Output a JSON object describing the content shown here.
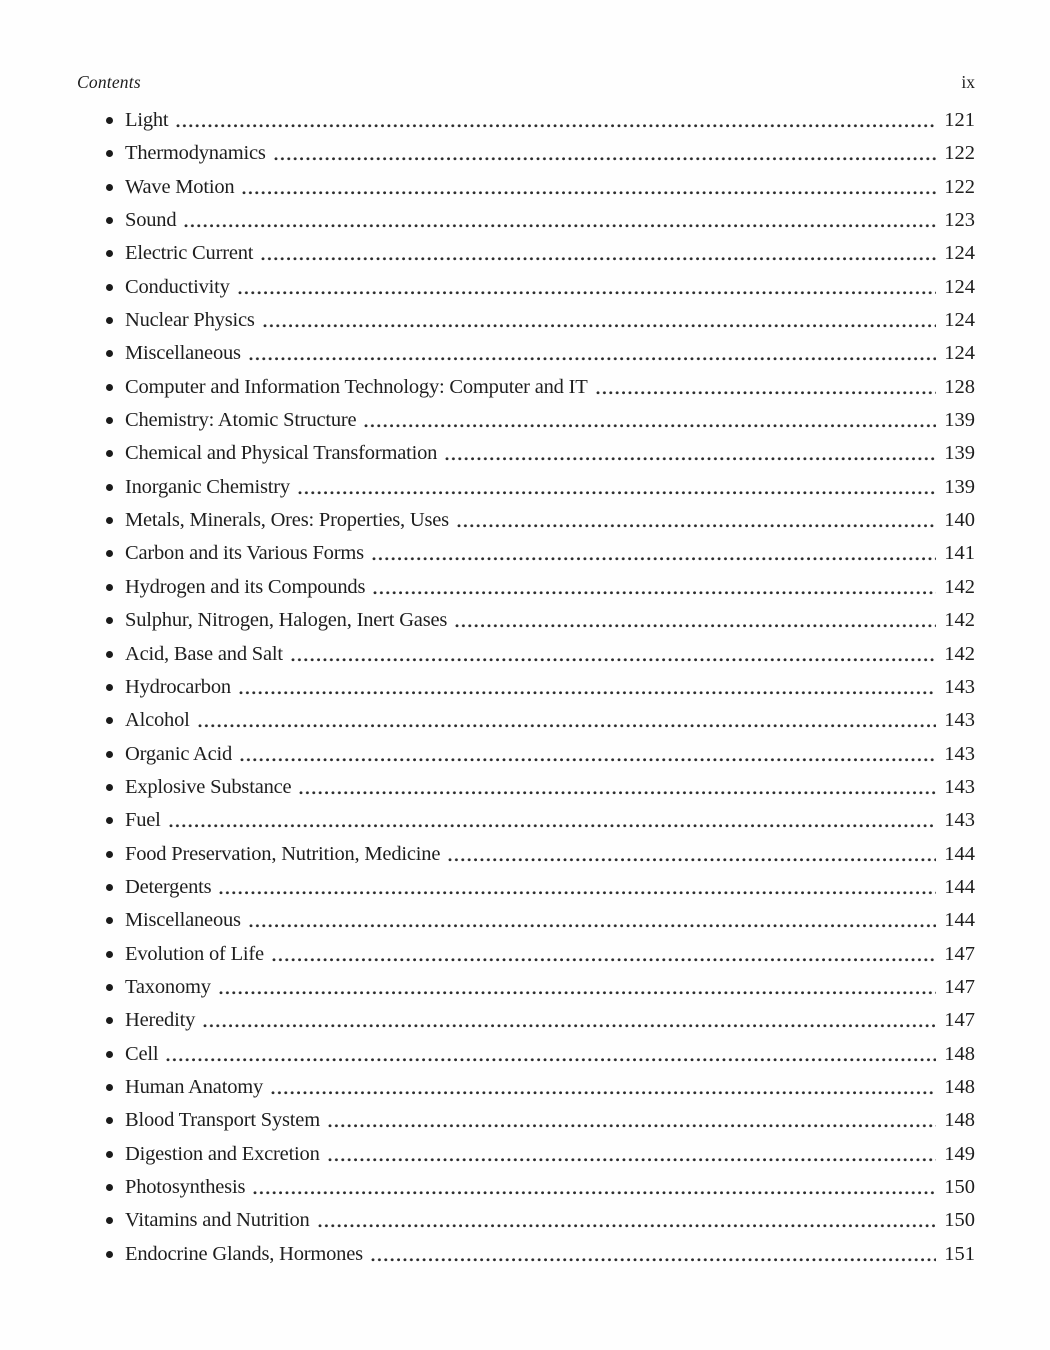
{
  "page": {
    "header": {
      "title": "Contents",
      "page_number": "ix"
    },
    "toc": {
      "entries": [
        {
          "title": "Light",
          "page": "121"
        },
        {
          "title": "Thermodynamics",
          "page": "122"
        },
        {
          "title": "Wave Motion",
          "page": "122"
        },
        {
          "title": "Sound",
          "page": "123"
        },
        {
          "title": "Electric Current",
          "page": "124"
        },
        {
          "title": "Conductivity",
          "page": "124"
        },
        {
          "title": "Nuclear Physics",
          "page": "124"
        },
        {
          "title": "Miscellaneous",
          "page": "124"
        },
        {
          "title": "Computer and Information Technology: Computer and IT",
          "page": "128"
        },
        {
          "title": "Chemistry: Atomic Structure",
          "page": "139"
        },
        {
          "title": "Chemical and Physical Transformation",
          "page": "139"
        },
        {
          "title": "Inorganic Chemistry",
          "page": "139"
        },
        {
          "title": "Metals, Minerals, Ores: Properties, Uses",
          "page": "140"
        },
        {
          "title": "Carbon and its Various Forms",
          "page": "141"
        },
        {
          "title": "Hydrogen and its Compounds",
          "page": "142"
        },
        {
          "title": "Sulphur, Nitrogen, Halogen, Inert Gases",
          "page": "142"
        },
        {
          "title": "Acid, Base and Salt",
          "page": "142"
        },
        {
          "title": "Hydrocarbon",
          "page": "143"
        },
        {
          "title": "Alcohol",
          "page": "143"
        },
        {
          "title": "Organic Acid",
          "page": "143"
        },
        {
          "title": "Explosive Substance",
          "page": "143"
        },
        {
          "title": "Fuel",
          "page": "143"
        },
        {
          "title": "Food Preservation, Nutrition, Medicine",
          "page": "144"
        },
        {
          "title": "Detergents",
          "page": "144"
        },
        {
          "title": "Miscellaneous",
          "page": "144"
        },
        {
          "title": "Evolution of Life",
          "page": "147"
        },
        {
          "title": "Taxonomy",
          "page": "147"
        },
        {
          "title": "Heredity",
          "page": "147"
        },
        {
          "title": "Cell",
          "page": "148"
        },
        {
          "title": "Human Anatomy",
          "page": "148"
        },
        {
          "title": "Blood Transport System",
          "page": "148"
        },
        {
          "title": "Digestion and Excretion",
          "page": "149"
        },
        {
          "title": "Photosynthesis",
          "page": "150"
        },
        {
          "title": "Vitamins and Nutrition",
          "page": "150"
        },
        {
          "title": "Endocrine Glands, Hormones",
          "page": "151"
        }
      ]
    }
  }
}
